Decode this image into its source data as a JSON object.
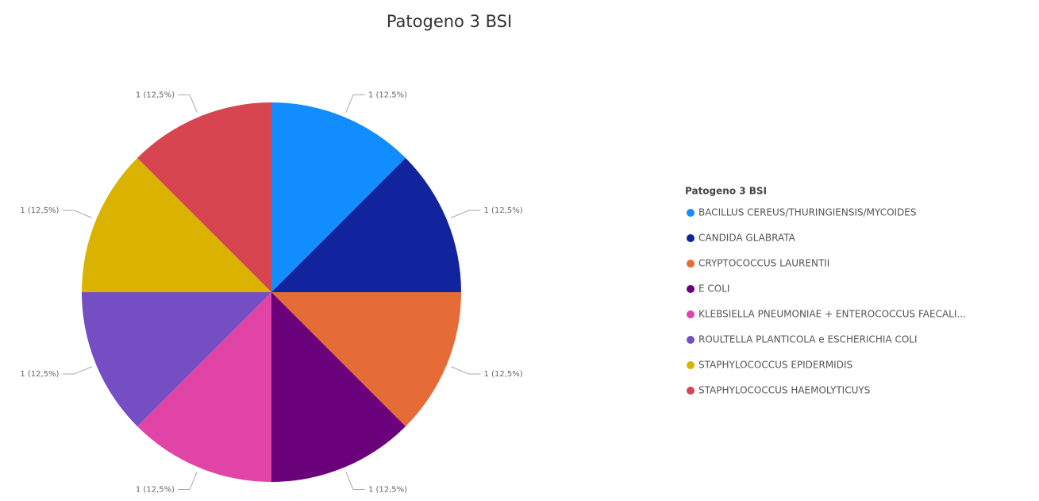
{
  "chart_data": {
    "type": "pie",
    "title": "Patogeno 3 BSI",
    "legend_title": "Patogeno 3 BSI",
    "categories": [
      "BACILLUS CEREUS/THURINGIENSIS/MYCOIDES",
      "CANDIDA GLABRATA",
      "CRYPTOCOCCUS LAURENTII",
      "E COLI",
      "KLEBSIELLA PNEUMONIAE + ENTEROCOCCUS FAECALI...",
      "ROULTELLA PLANTICOLA e ESCHERICHIA COLI",
      "STAPHYLOCOCCUS EPIDERMIDIS",
      "STAPHYLOCOCCUS HAEMOLYTICUYS"
    ],
    "values": [
      1,
      1,
      1,
      1,
      1,
      1,
      1,
      1
    ],
    "value_labels": [
      "1 (12,5%)",
      "1 (12,5%)",
      "1 (12,5%)",
      "1 (12,5%)",
      "1 (12,5%)",
      "1 (12,5%)",
      "1 (12,5%)",
      "1 (12,5%)"
    ],
    "colors": [
      "#118DFF",
      "#12239E",
      "#E66C37",
      "#6B007B",
      "#E044A7",
      "#744EC2",
      "#D9B300",
      "#D64550"
    ],
    "legend": "right"
  }
}
